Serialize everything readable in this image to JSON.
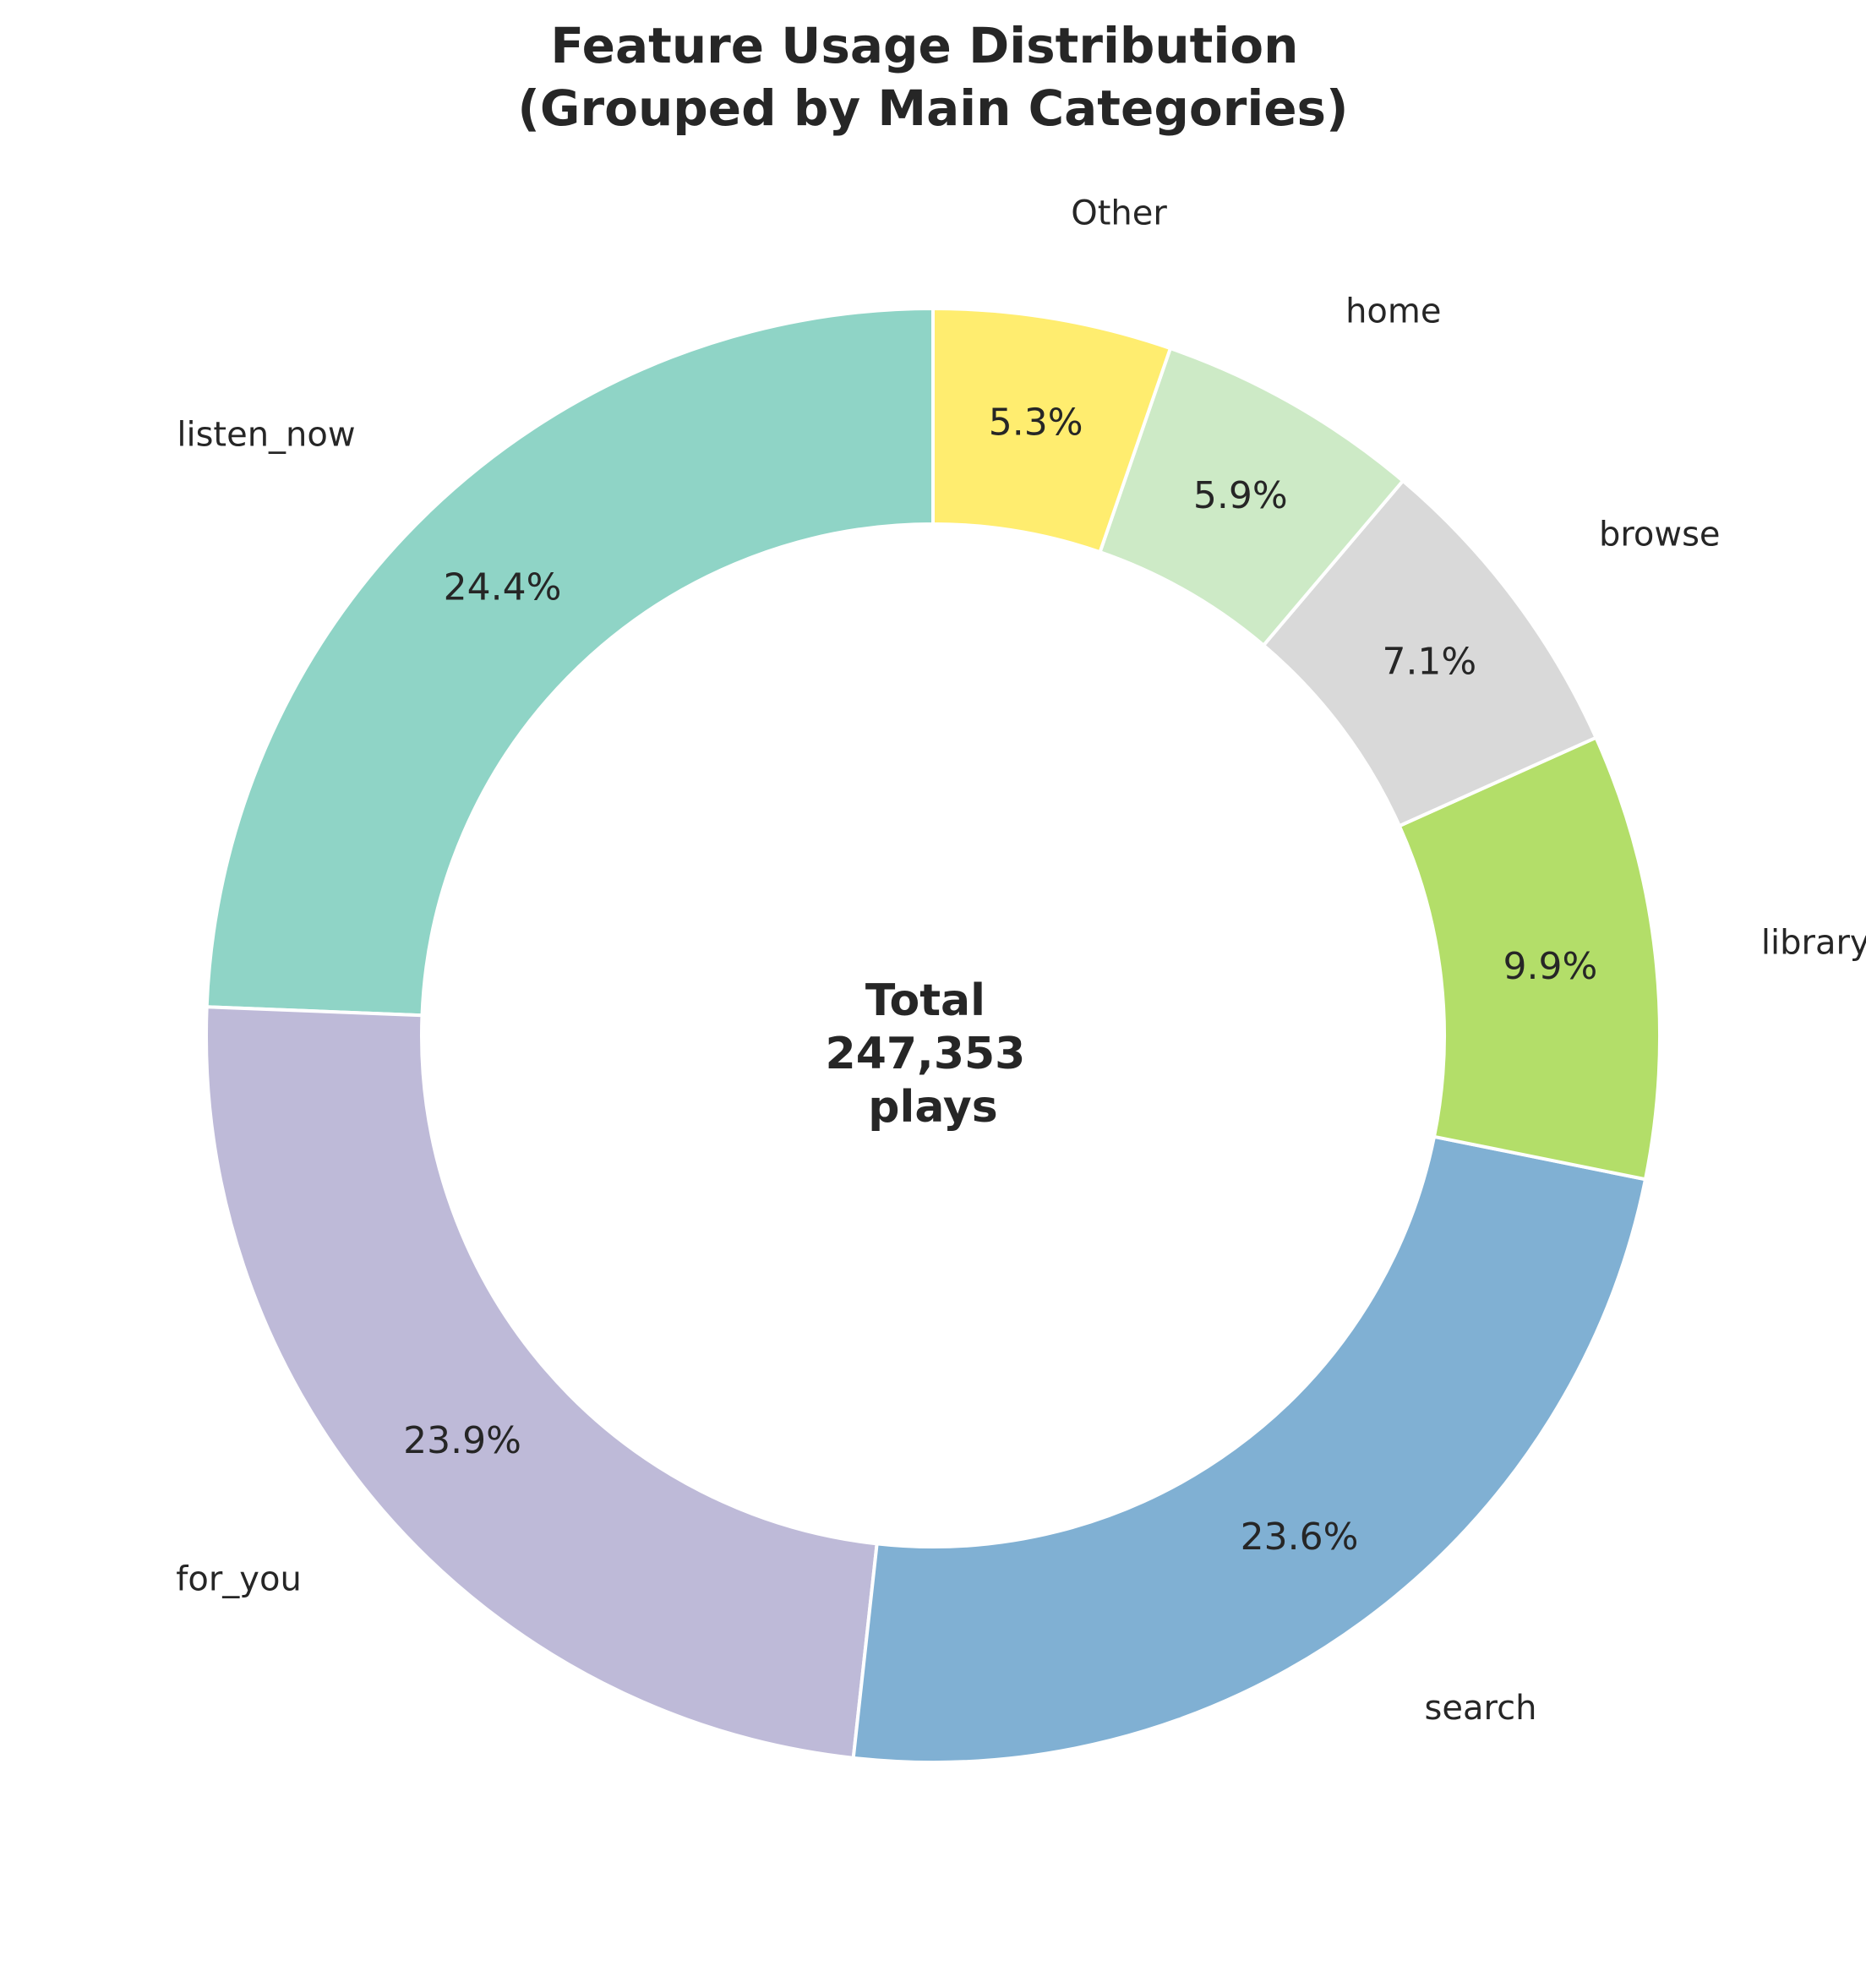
{
  "chart_data": {
    "type": "pie",
    "variant": "donut",
    "title": "Feature Usage Distribution\n(Grouped by Main Categories)",
    "categories": [
      "listen_now",
      "for_you",
      "search",
      "library",
      "browse",
      "home",
      "Other"
    ],
    "values": [
      24.4,
      23.9,
      23.6,
      9.9,
      7.1,
      5.9,
      5.3
    ],
    "value_labels": [
      "24.4%",
      "23.9%",
      "23.6%",
      "9.9%",
      "7.1%",
      "5.9%",
      "5.3%"
    ],
    "colors": [
      "#8fd4c6",
      "#bebad8",
      "#80b0d3",
      "#b3de69",
      "#d9d9d9",
      "#cdeac6",
      "#ffed6f"
    ],
    "start_angle_deg": 90,
    "direction": "counterclockwise",
    "center_label": {
      "line1": "Total",
      "line2": "247,353",
      "line3": "plays"
    },
    "legend": "none"
  }
}
